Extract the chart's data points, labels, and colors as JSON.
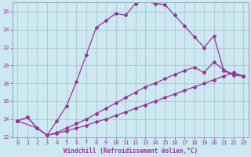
{
  "xlabel": "Windchill (Refroidissement éolien,°C)",
  "xlim": [
    -0.5,
    23.5
  ],
  "ylim": [
    12,
    27
  ],
  "xticks": [
    0,
    1,
    2,
    3,
    4,
    5,
    6,
    7,
    8,
    9,
    10,
    11,
    12,
    13,
    14,
    15,
    16,
    17,
    18,
    19,
    20,
    21,
    22,
    23
  ],
  "yticks": [
    12,
    14,
    16,
    18,
    20,
    22,
    24,
    26
  ],
  "bg_color": "#cce8f0",
  "line_color": "#993399",
  "grid_color": "#aabbcc",
  "line_peak_x": [
    0,
    1,
    2,
    3,
    4,
    5,
    6,
    7,
    8,
    9,
    10,
    11,
    12,
    13,
    14,
    15,
    16,
    17,
    18,
    19,
    20,
    21,
    22,
    23
  ],
  "line_peak_y": [
    13.8,
    14.2,
    13.0,
    12.2,
    13.8,
    15.5,
    18.2,
    21.2,
    24.2,
    25.0,
    25.8,
    25.6,
    26.9,
    27.2,
    26.9,
    26.8,
    25.6,
    24.4,
    23.2,
    22.0,
    23.3,
    19.4,
    18.9,
    18.8
  ],
  "line_mid_x": [
    0,
    2,
    3,
    4,
    5,
    6,
    7,
    8,
    9,
    10,
    11,
    12,
    13,
    14,
    15,
    16,
    17,
    18,
    19,
    20,
    21,
    22,
    23
  ],
  "line_mid_y": [
    13.8,
    13.0,
    12.2,
    12.5,
    13.0,
    13.5,
    14.0,
    14.6,
    15.2,
    15.8,
    16.4,
    17.0,
    17.6,
    18.0,
    18.5,
    19.0,
    19.4,
    19.8,
    19.2,
    20.4,
    19.5,
    19.0,
    18.8
  ],
  "line_low_x": [
    0,
    1,
    2,
    3,
    4,
    5,
    6,
    7,
    8,
    9,
    10,
    11,
    12,
    13,
    14,
    15,
    16,
    17,
    18,
    19,
    20,
    21,
    22,
    23
  ],
  "line_low_y": [
    13.8,
    14.2,
    13.0,
    12.2,
    12.4,
    12.7,
    13.0,
    13.3,
    13.7,
    14.0,
    14.4,
    14.8,
    15.2,
    15.6,
    16.0,
    16.4,
    16.8,
    17.2,
    17.6,
    18.0,
    18.4,
    18.8,
    19.2,
    18.8
  ]
}
